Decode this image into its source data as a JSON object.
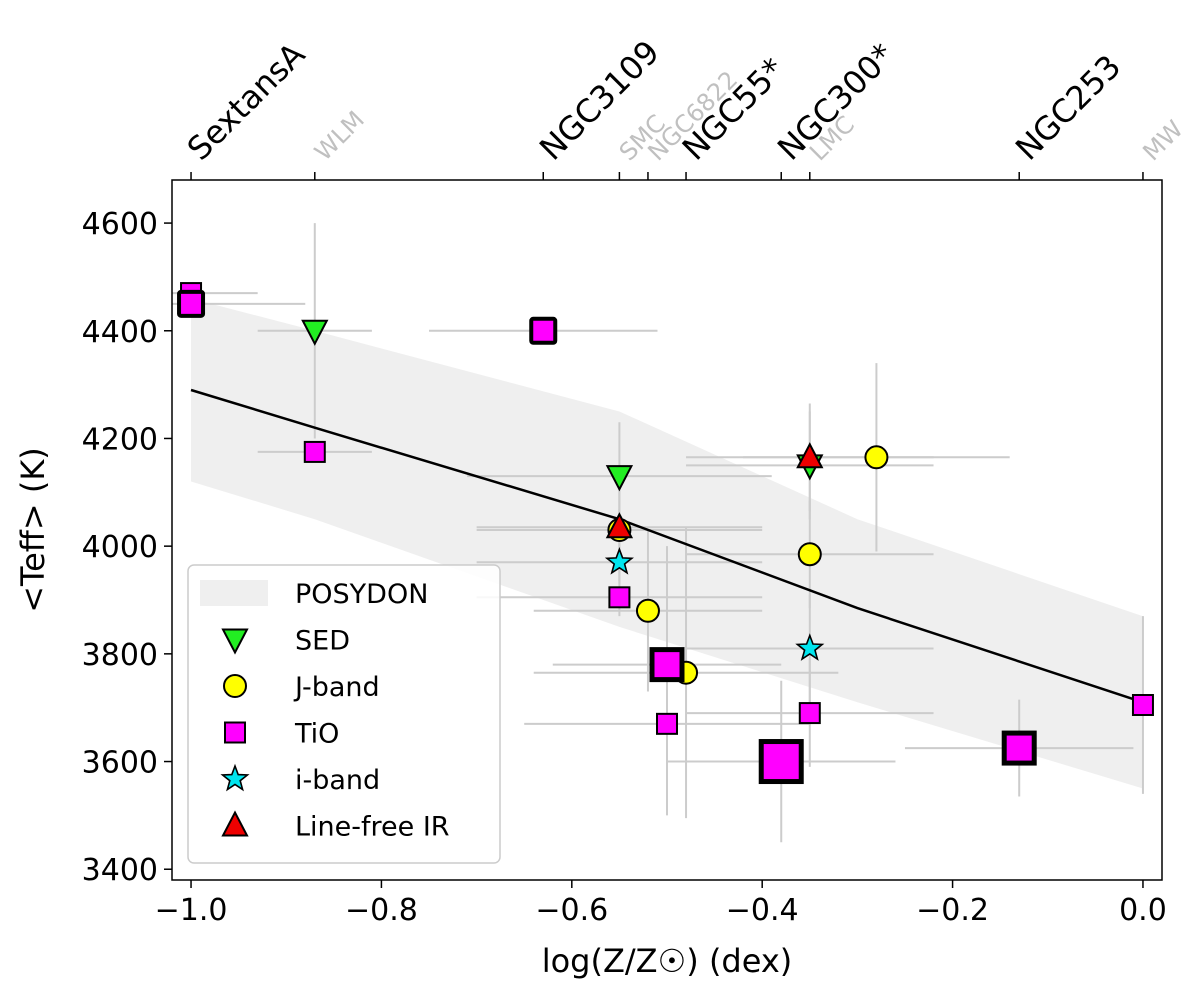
{
  "chart_data": {
    "type": "scatter",
    "xlabel": "log(Z/Z☉) (dex)",
    "ylabel": "<Teff> (K)",
    "xlim": [
      -1.02,
      0.02
    ],
    "ylim": [
      3380,
      4680
    ],
    "x_ticks": [
      -1.0,
      -0.8,
      -0.6,
      -0.4,
      -0.2,
      0.0
    ],
    "x_tick_labels": [
      "−1.0",
      "−0.8",
      "−0.6",
      "−0.4",
      "−0.2",
      "0.0"
    ],
    "y_ticks": [
      3400,
      3600,
      3800,
      4000,
      4200,
      4400,
      4600
    ],
    "y_tick_labels": [
      "3400",
      "3600",
      "3800",
      "4000",
      "4200",
      "4400",
      "4600"
    ],
    "top_axis_galaxies": [
      {
        "name": "SextansA",
        "x": -1.0,
        "style": "dark"
      },
      {
        "name": "WLM",
        "x": -0.87,
        "style": "light"
      },
      {
        "name": "NGC3109",
        "x": -0.63,
        "style": "dark"
      },
      {
        "name": "SMC",
        "x": -0.55,
        "style": "light"
      },
      {
        "name": "NGC6822",
        "x": -0.52,
        "style": "light"
      },
      {
        "name": "NGC55*",
        "x": -0.48,
        "style": "dark"
      },
      {
        "name": "NGC300*",
        "x": -0.38,
        "style": "dark"
      },
      {
        "name": "LMC",
        "x": -0.35,
        "style": "light"
      },
      {
        "name": "NGC253",
        "x": -0.13,
        "style": "dark"
      },
      {
        "name": "MW",
        "x": 0.0,
        "style": "light"
      }
    ],
    "posydon": {
      "label": "POSYDON",
      "x": [
        -1.0,
        -0.87,
        -0.55,
        -0.3,
        0.0
      ],
      "mean": [
        4290,
        4220,
        4050,
        3885,
        3710
      ],
      "upper": [
        4460,
        4400,
        4250,
        4050,
        3870
      ],
      "lower": [
        4120,
        4050,
        3850,
        3710,
        3550
      ]
    },
    "legend": [
      {
        "key": "posydon",
        "label": "POSYDON"
      },
      {
        "key": "sed",
        "label": "SED"
      },
      {
        "key": "jband",
        "label": "J-band"
      },
      {
        "key": "tio",
        "label": "TiO"
      },
      {
        "key": "iband",
        "label": "i-band"
      },
      {
        "key": "linefree",
        "label": "Line-free IR"
      }
    ],
    "colors": {
      "sed": "#22ee22",
      "jband": "#ffff00",
      "tio": "#ff00ff",
      "iband": "#00e5ee",
      "linefree": "#ee0000",
      "errorbar": "#cccccc",
      "band": "#efefef",
      "posydon_line": "#000000",
      "label_dark": "#000000",
      "label_light": "#c0c0c0"
    },
    "series": [
      {
        "name": "SED",
        "marker": "tri-down",
        "points": [
          {
            "x": -0.87,
            "y": 4400,
            "xerr": 0.06,
            "yerr": 200,
            "size": "normal"
          },
          {
            "x": -0.55,
            "y": 4130,
            "xerr": 0.16,
            "yerr": 100,
            "size": "normal"
          },
          {
            "x": -0.35,
            "y": 4150,
            "xerr": 0.13,
            "yerr": 100,
            "size": "normal"
          }
        ]
      },
      {
        "name": "J-band",
        "marker": "circle",
        "points": [
          {
            "x": -0.55,
            "y": 4030,
            "xerr": 0.15,
            "yerr": 100,
            "size": "normal"
          },
          {
            "x": -0.52,
            "y": 3880,
            "xerr": 0.12,
            "yerr": 150,
            "size": "normal"
          },
          {
            "x": -0.48,
            "y": 3765,
            "xerr": 0.16,
            "yerr": 270,
            "size": "normal"
          },
          {
            "x": -0.35,
            "y": 3985,
            "xerr": 0.13,
            "yerr": 100,
            "size": "normal"
          },
          {
            "x": -0.28,
            "y": 4165,
            "xerr": 0.14,
            "yerr": 175,
            "size": "normal"
          }
        ]
      },
      {
        "name": "TiO",
        "marker": "square",
        "points": [
          {
            "x": -1.0,
            "y": 4470,
            "xerr": 0.07,
            "yerr": 0,
            "size": "normal"
          },
          {
            "x": -1.0,
            "y": 4450,
            "xerr": 0.12,
            "yerr": 0,
            "size": "outlined-small"
          },
          {
            "x": -0.87,
            "y": 4175,
            "xerr": 0.06,
            "yerr": 0,
            "size": "normal"
          },
          {
            "x": -0.63,
            "y": 4400,
            "xerr": 0.12,
            "yerr": 0,
            "size": "outlined-small"
          },
          {
            "x": -0.55,
            "y": 3905,
            "xerr": 0.15,
            "yerr": 0,
            "size": "normal"
          },
          {
            "x": -0.5,
            "y": 3780,
            "xerr": 0.12,
            "yerr": 220,
            "size": "outlined-large"
          },
          {
            "x": -0.5,
            "y": 3670,
            "xerr": 0.15,
            "yerr": 170,
            "size": "normal"
          },
          {
            "x": -0.38,
            "y": 3600,
            "xerr": 0.12,
            "yerr": 150,
            "size": "outlined-xl"
          },
          {
            "x": -0.35,
            "y": 3690,
            "xerr": 0.13,
            "yerr": 100,
            "size": "normal"
          },
          {
            "x": -0.13,
            "y": 3625,
            "xerr": 0.12,
            "yerr": 90,
            "size": "outlined-large"
          },
          {
            "x": 0.0,
            "y": 3705,
            "xerr": 0.0,
            "yerr": 165,
            "size": "normal"
          }
        ]
      },
      {
        "name": "i-band",
        "marker": "star",
        "points": [
          {
            "x": -0.55,
            "y": 3970,
            "xerr": 0.15,
            "yerr": 100,
            "size": "normal"
          },
          {
            "x": -0.35,
            "y": 3810,
            "xerr": 0.13,
            "yerr": 100,
            "size": "normal"
          }
        ]
      },
      {
        "name": "Line-free IR",
        "marker": "tri-up",
        "points": [
          {
            "x": -0.55,
            "y": 4035,
            "xerr": 0.15,
            "yerr": 100,
            "size": "normal"
          },
          {
            "x": -0.35,
            "y": 4165,
            "xerr": 0.13,
            "yerr": 100,
            "size": "normal"
          }
        ]
      }
    ]
  }
}
